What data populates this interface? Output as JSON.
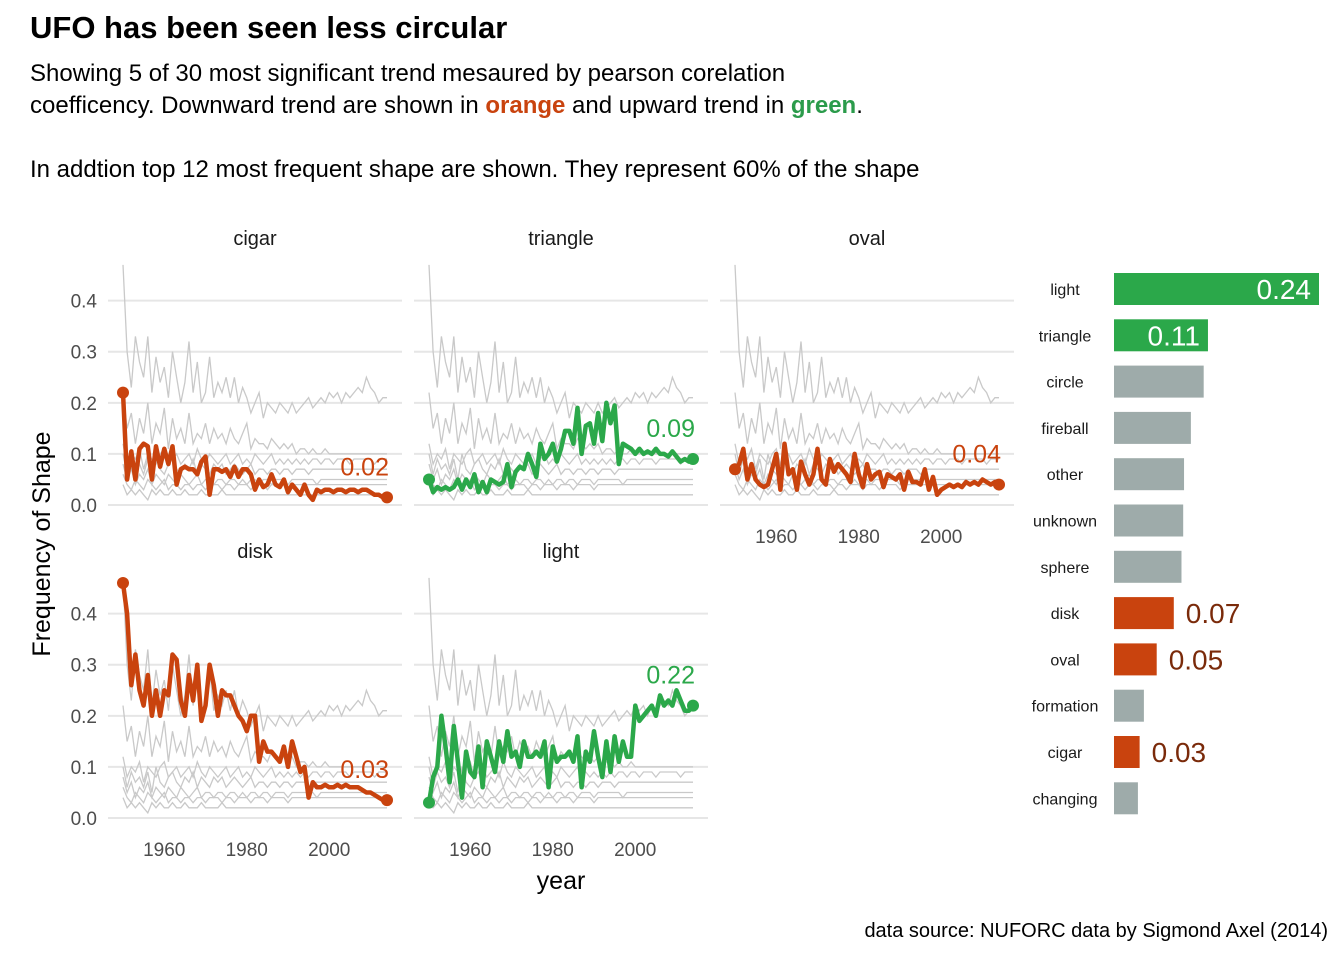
{
  "title": "UFO has been seen less circular",
  "subtitle": {
    "line1": "Showing 5 of 30 most significant trend mesaured by pearson corelation",
    "line2_pre": "coefficency. Downward trend are shown in ",
    "line2_orange": "orange",
    "line2_mid": " and upward trend in ",
    "line2_green": "green",
    "line2_post": ".",
    "line3": "In addtion top 12 most frequent shape are shown. They represent 60% of the shape"
  },
  "caption": "data source: NUFORC data by Sigmond Axel (2014)",
  "colors": {
    "orange": "#C9430E",
    "green": "#2BA84A",
    "grey_bar": "#9EABAA",
    "background_line": "#c9c9c9",
    "grid": "#e6e6e6"
  },
  "chart_data": [
    {
      "type": "line",
      "xlabel": "year",
      "ylabel": "Frequency of Shape",
      "xlim": [
        1950,
        2014
      ],
      "ylim": [
        0,
        0.46
      ],
      "x_ticks": [
        "1960",
        "1980",
        "2000"
      ],
      "y_ticks": [
        "0.0",
        "0.1",
        "0.2",
        "0.3",
        "0.4"
      ],
      "x": [
        1950,
        1951,
        1952,
        1953,
        1954,
        1955,
        1956,
        1957,
        1958,
        1959,
        1960,
        1961,
        1962,
        1963,
        1964,
        1965,
        1966,
        1967,
        1968,
        1969,
        1970,
        1971,
        1972,
        1973,
        1974,
        1975,
        1976,
        1977,
        1978,
        1979,
        1980,
        1981,
        1982,
        1983,
        1984,
        1985,
        1986,
        1987,
        1988,
        1989,
        1990,
        1991,
        1992,
        1993,
        1994,
        1995,
        1996,
        1997,
        1998,
        1999,
        2000,
        2001,
        2002,
        2003,
        2004,
        2005,
        2006,
        2007,
        2008,
        2009,
        2010,
        2011,
        2012,
        2013,
        2014
      ],
      "panels": [
        {
          "name": "cigar",
          "trend": "down",
          "end_label": "0.02",
          "values": [
            0.22,
            0.05,
            0.105,
            0.05,
            0.11,
            0.12,
            0.115,
            0.05,
            0.115,
            0.075,
            0.11,
            0.08,
            0.115,
            0.04,
            0.07,
            0.075,
            0.07,
            0.07,
            0.06,
            0.085,
            0.095,
            0.02,
            0.07,
            0.07,
            0.065,
            0.07,
            0.055,
            0.075,
            0.055,
            0.07,
            0.07,
            0.06,
            0.03,
            0.05,
            0.035,
            0.04,
            0.06,
            0.04,
            0.035,
            0.05,
            0.025,
            0.04,
            0.03,
            0.02,
            0.04,
            0.02,
            0.01,
            0.03,
            0.025,
            0.03,
            0.03,
            0.025,
            0.03,
            0.03,
            0.025,
            0.03,
            0.03,
            0.025,
            0.03,
            0.03,
            0.025,
            0.02,
            0.02,
            0.015,
            0.015
          ]
        },
        {
          "name": "triangle",
          "trend": "up",
          "end_label": "0.09",
          "values": [
            0.05,
            0.025,
            0.035,
            0.03,
            0.035,
            0.03,
            0.035,
            0.05,
            0.03,
            0.05,
            0.035,
            0.06,
            0.025,
            0.045,
            0.025,
            0.05,
            0.045,
            0.04,
            0.045,
            0.08,
            0.035,
            0.065,
            0.075,
            0.07,
            0.1,
            0.08,
            0.055,
            0.12,
            0.09,
            0.1,
            0.12,
            0.085,
            0.11,
            0.145,
            0.145,
            0.12,
            0.19,
            0.1,
            0.155,
            0.16,
            0.12,
            0.18,
            0.125,
            0.2,
            0.16,
            0.195,
            0.08,
            0.12,
            0.115,
            0.11,
            0.1,
            0.11,
            0.1,
            0.105,
            0.1,
            0.11,
            0.1,
            0.1,
            0.095,
            0.105,
            0.095,
            0.085,
            0.09,
            0.085,
            0.09
          ]
        },
        {
          "name": "oval",
          "trend": "down",
          "end_label": "0.04",
          "values": [
            0.07,
            0.08,
            0.11,
            0.05,
            0.08,
            0.05,
            0.04,
            0.035,
            0.04,
            0.07,
            0.1,
            0.03,
            0.12,
            0.06,
            0.07,
            0.03,
            0.085,
            0.06,
            0.04,
            0.06,
            0.11,
            0.05,
            0.04,
            0.09,
            0.065,
            0.08,
            0.07,
            0.06,
            0.045,
            0.1,
            0.06,
            0.035,
            0.08,
            0.05,
            0.06,
            0.065,
            0.035,
            0.06,
            0.055,
            0.05,
            0.06,
            0.03,
            0.065,
            0.045,
            0.045,
            0.04,
            0.07,
            0.03,
            0.055,
            0.02,
            0.03,
            0.035,
            0.04,
            0.035,
            0.04,
            0.035,
            0.045,
            0.04,
            0.045,
            0.04,
            0.05,
            0.045,
            0.04,
            0.045,
            0.04
          ]
        },
        {
          "name": "disk",
          "trend": "down",
          "end_label": "0.03",
          "values": [
            0.46,
            0.4,
            0.26,
            0.32,
            0.25,
            0.22,
            0.28,
            0.2,
            0.25,
            0.2,
            0.25,
            0.24,
            0.32,
            0.31,
            0.23,
            0.2,
            0.28,
            0.23,
            0.3,
            0.19,
            0.22,
            0.3,
            0.26,
            0.2,
            0.25,
            0.24,
            0.24,
            0.22,
            0.2,
            0.19,
            0.17,
            0.2,
            0.2,
            0.11,
            0.15,
            0.13,
            0.13,
            0.12,
            0.11,
            0.14,
            0.1,
            0.15,
            0.12,
            0.09,
            0.1,
            0.04,
            0.07,
            0.06,
            0.06,
            0.065,
            0.06,
            0.06,
            0.065,
            0.06,
            0.065,
            0.06,
            0.06,
            0.06,
            0.055,
            0.05,
            0.05,
            0.045,
            0.04,
            0.035,
            0.035
          ]
        },
        {
          "name": "light",
          "trend": "up",
          "end_label": "0.22",
          "values": [
            0.03,
            0.08,
            0.1,
            0.2,
            0.14,
            0.07,
            0.18,
            0.11,
            0.04,
            0.13,
            0.09,
            0.08,
            0.14,
            0.06,
            0.15,
            0.12,
            0.09,
            0.15,
            0.11,
            0.17,
            0.12,
            0.13,
            0.1,
            0.15,
            0.12,
            0.12,
            0.13,
            0.12,
            0.15,
            0.06,
            0.14,
            0.11,
            0.12,
            0.12,
            0.13,
            0.11,
            0.16,
            0.06,
            0.13,
            0.11,
            0.17,
            0.12,
            0.08,
            0.15,
            0.09,
            0.16,
            0.11,
            0.15,
            0.12,
            0.12,
            0.22,
            0.19,
            0.2,
            0.21,
            0.22,
            0.2,
            0.24,
            0.22,
            0.23,
            0.22,
            0.25,
            0.23,
            0.21,
            0.21,
            0.22
          ]
        }
      ],
      "background_series": [
        [
          0.47,
          0.3,
          0.23,
          0.33,
          0.28,
          0.25,
          0.33,
          0.22,
          0.29,
          0.24,
          0.27,
          0.21,
          0.3,
          0.25,
          0.2,
          0.24,
          0.32,
          0.22,
          0.28,
          0.2,
          0.22,
          0.29,
          0.21,
          0.24,
          0.22,
          0.25,
          0.21,
          0.25,
          0.2,
          0.23,
          0.21,
          0.18,
          0.2,
          0.22,
          0.17,
          0.2,
          0.19,
          0.18,
          0.2,
          0.19,
          0.18,
          0.2,
          0.18,
          0.19,
          0.2,
          0.21,
          0.19,
          0.2,
          0.21,
          0.2,
          0.22,
          0.21,
          0.22,
          0.2,
          0.22,
          0.21,
          0.22,
          0.23,
          0.22,
          0.25,
          0.23,
          0.22,
          0.2,
          0.21,
          0.21
        ],
        [
          0.22,
          0.15,
          0.18,
          0.12,
          0.17,
          0.14,
          0.2,
          0.12,
          0.16,
          0.14,
          0.19,
          0.11,
          0.17,
          0.13,
          0.15,
          0.12,
          0.18,
          0.12,
          0.14,
          0.13,
          0.16,
          0.12,
          0.15,
          0.13,
          0.14,
          0.12,
          0.15,
          0.13,
          0.12,
          0.14,
          0.16,
          0.11,
          0.13,
          0.12,
          0.12,
          0.11,
          0.13,
          0.12,
          0.11,
          0.12,
          0.11,
          0.12,
          0.1,
          0.11,
          0.11,
          0.1,
          0.11,
          0.1,
          0.1,
          0.11,
          0.1,
          0.1,
          0.1,
          0.1,
          0.1,
          0.1,
          0.1,
          0.1,
          0.1,
          0.1,
          0.1,
          0.1,
          0.1,
          0.1,
          0.1
        ],
        [
          0.12,
          0.08,
          0.1,
          0.09,
          0.11,
          0.07,
          0.1,
          0.09,
          0.08,
          0.1,
          0.11,
          0.08,
          0.09,
          0.1,
          0.08,
          0.09,
          0.1,
          0.08,
          0.11,
          0.09,
          0.08,
          0.1,
          0.09,
          0.08,
          0.09,
          0.1,
          0.08,
          0.09,
          0.1,
          0.08,
          0.09,
          0.08,
          0.1,
          0.09,
          0.08,
          0.09,
          0.1,
          0.08,
          0.09,
          0.08,
          0.09,
          0.08,
          0.09,
          0.08,
          0.09,
          0.08,
          0.09,
          0.09,
          0.08,
          0.09,
          0.09,
          0.08,
          0.09,
          0.09,
          0.09,
          0.08,
          0.09,
          0.09,
          0.09,
          0.09,
          0.09,
          0.08,
          0.09,
          0.09,
          0.09
        ],
        [
          0.1,
          0.06,
          0.09,
          0.07,
          0.08,
          0.06,
          0.09,
          0.05,
          0.1,
          0.07,
          0.06,
          0.08,
          0.09,
          0.07,
          0.06,
          0.08,
          0.07,
          0.09,
          0.06,
          0.08,
          0.07,
          0.06,
          0.08,
          0.07,
          0.08,
          0.06,
          0.07,
          0.08,
          0.07,
          0.06,
          0.07,
          0.08,
          0.06,
          0.07,
          0.07,
          0.06,
          0.07,
          0.07,
          0.06,
          0.07,
          0.07,
          0.06,
          0.07,
          0.07,
          0.07,
          0.06,
          0.07,
          0.07,
          0.07,
          0.07,
          0.07,
          0.07,
          0.07,
          0.07,
          0.07,
          0.07,
          0.07,
          0.07,
          0.07,
          0.07,
          0.07,
          0.07,
          0.07,
          0.07,
          0.07
        ],
        [
          0.08,
          0.05,
          0.07,
          0.04,
          0.06,
          0.05,
          0.07,
          0.04,
          0.06,
          0.05,
          0.04,
          0.06,
          0.05,
          0.04,
          0.06,
          0.05,
          0.04,
          0.05,
          0.06,
          0.04,
          0.05,
          0.05,
          0.04,
          0.05,
          0.05,
          0.04,
          0.05,
          0.05,
          0.04,
          0.05,
          0.04,
          0.05,
          0.05,
          0.04,
          0.05,
          0.05,
          0.04,
          0.05,
          0.05,
          0.05,
          0.04,
          0.05,
          0.05,
          0.05,
          0.05,
          0.05,
          0.05,
          0.04,
          0.05,
          0.05,
          0.05,
          0.05,
          0.05,
          0.05,
          0.05,
          0.05,
          0.05,
          0.05,
          0.05,
          0.05,
          0.05,
          0.05,
          0.05,
          0.05,
          0.05
        ],
        [
          0.06,
          0.04,
          0.03,
          0.05,
          0.04,
          0.03,
          0.05,
          0.04,
          0.03,
          0.04,
          0.05,
          0.03,
          0.04,
          0.04,
          0.03,
          0.04,
          0.04,
          0.03,
          0.04,
          0.04,
          0.03,
          0.04,
          0.04,
          0.04,
          0.03,
          0.04,
          0.04,
          0.03,
          0.04,
          0.04,
          0.04,
          0.03,
          0.04,
          0.04,
          0.04,
          0.03,
          0.04,
          0.04,
          0.04,
          0.04,
          0.03,
          0.04,
          0.04,
          0.04,
          0.04,
          0.04,
          0.04,
          0.04,
          0.04,
          0.04,
          0.04,
          0.04,
          0.04,
          0.04,
          0.04,
          0.04,
          0.04,
          0.04,
          0.04,
          0.04,
          0.04,
          0.04,
          0.04,
          0.04,
          0.04
        ],
        [
          0.04,
          0.02,
          0.03,
          0.02,
          0.03,
          0.02,
          0.01,
          0.03,
          0.02,
          0.03,
          0.02,
          0.02,
          0.03,
          0.02,
          0.02,
          0.03,
          0.02,
          0.02,
          0.02,
          0.03,
          0.02,
          0.02,
          0.02,
          0.02,
          0.03,
          0.02,
          0.02,
          0.02,
          0.02,
          0.02,
          0.02,
          0.02,
          0.02,
          0.02,
          0.02,
          0.02,
          0.02,
          0.02,
          0.02,
          0.02,
          0.02,
          0.02,
          0.02,
          0.02,
          0.02,
          0.02,
          0.02,
          0.02,
          0.02,
          0.02,
          0.02,
          0.02,
          0.02,
          0.02,
          0.02,
          0.02,
          0.02,
          0.02,
          0.02,
          0.02,
          0.02,
          0.02,
          0.02,
          0.02,
          0.02
        ]
      ]
    },
    {
      "type": "bar",
      "orientation": "horizontal",
      "categories": [
        "light",
        "triangle",
        "circle",
        "fireball",
        "other",
        "unknown",
        "sphere",
        "disk",
        "oval",
        "formation",
        "cigar",
        "changing"
      ],
      "values": [
        0.24,
        0.11,
        0.105,
        0.09,
        0.082,
        0.081,
        0.079,
        0.07,
        0.05,
        0.035,
        0.03,
        0.028
      ],
      "bar_colors": [
        "green",
        "green",
        "grey",
        "grey",
        "grey",
        "grey",
        "grey",
        "orange",
        "orange",
        "grey",
        "orange",
        "grey"
      ],
      "labels": [
        "0.24",
        "0.11",
        "",
        "",
        "",
        "",
        "",
        "0.07",
        "0.05",
        "",
        "0.03",
        ""
      ]
    }
  ]
}
